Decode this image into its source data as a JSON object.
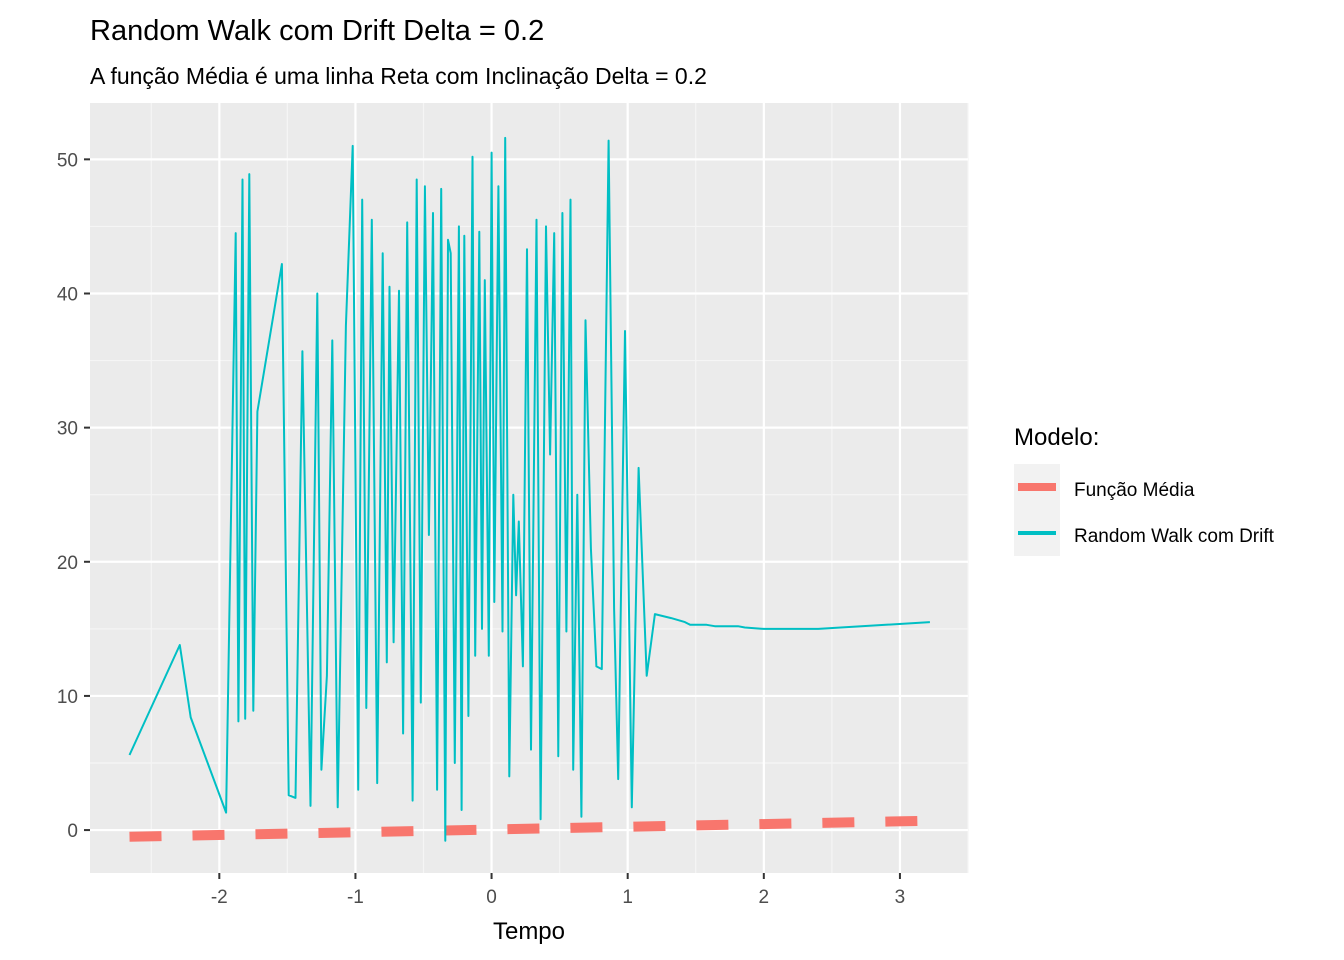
{
  "chart_data": {
    "type": "line",
    "title": "Random Walk com Drift Delta = 0.2",
    "subtitle": "A função Média é uma linha Reta com Inclinação Delta = 0.2",
    "xlabel": "Tempo",
    "ylabel": "",
    "xlim": [
      -2.95,
      3.5
    ],
    "ylim": [
      -3.2,
      54.2
    ],
    "x_ticks": [
      -2,
      -1,
      0,
      1,
      2,
      3
    ],
    "x_tick_labels": [
      "-2",
      "-1",
      "0",
      "1",
      "2",
      "3"
    ],
    "y_ticks": [
      0,
      10,
      20,
      30,
      40,
      50
    ],
    "y_tick_labels": [
      "0",
      "10",
      "20",
      "30",
      "40",
      "50"
    ],
    "grid": true,
    "legend": {
      "title": "Modelo:",
      "placement": "right",
      "entries": [
        "Função Média",
        "Random Walk com Drift"
      ]
    },
    "series": [
      {
        "name": "Função Média",
        "color": "#f8766d",
        "style": "dashed",
        "x": [
          -2.66,
          3.22
        ],
        "y": [
          -0.5,
          0.7
        ]
      },
      {
        "name": "Random Walk com Drift",
        "color": "#00bfc4",
        "style": "solid",
        "x": [
          -2.66,
          -2.29,
          -2.21,
          -1.95,
          -1.88,
          -1.86,
          -1.83,
          -1.81,
          -1.78,
          -1.75,
          -1.72,
          -1.54,
          -1.49,
          -1.44,
          -1.39,
          -1.33,
          -1.28,
          -1.25,
          -1.21,
          -1.17,
          -1.13,
          -1.07,
          -1.02,
          -0.98,
          -0.95,
          -0.92,
          -0.88,
          -0.84,
          -0.8,
          -0.77,
          -0.75,
          -0.72,
          -0.68,
          -0.65,
          -0.62,
          -0.58,
          -0.55,
          -0.52,
          -0.49,
          -0.46,
          -0.43,
          -0.4,
          -0.37,
          -0.34,
          -0.32,
          -0.3,
          -0.27,
          -0.24,
          -0.22,
          -0.2,
          -0.17,
          -0.14,
          -0.12,
          -0.09,
          -0.07,
          -0.05,
          -0.02,
          0.0,
          0.02,
          0.05,
          0.08,
          0.1,
          0.13,
          0.16,
          0.18,
          0.2,
          0.23,
          0.26,
          0.29,
          0.33,
          0.36,
          0.4,
          0.43,
          0.46,
          0.49,
          0.52,
          0.55,
          0.58,
          0.6,
          0.63,
          0.66,
          0.69,
          0.73,
          0.77,
          0.81,
          0.86,
          0.9,
          0.93,
          0.98,
          1.03,
          1.08,
          1.14,
          1.2,
          1.32,
          1.42,
          1.44,
          1.46,
          1.52,
          1.58,
          1.64,
          1.7,
          1.76,
          1.81,
          1.86,
          2.0,
          2.4,
          3.22
        ],
        "y": [
          5.6,
          13.8,
          8.4,
          1.3,
          44.5,
          8.1,
          48.5,
          8.3,
          48.9,
          8.9,
          31.2,
          42.2,
          2.6,
          2.4,
          35.7,
          1.8,
          40.0,
          4.5,
          11.5,
          36.5,
          1.7,
          37.6,
          51.0,
          3.0,
          47.0,
          9.1,
          45.5,
          3.5,
          43.0,
          12.5,
          40.5,
          14.0,
          40.2,
          7.2,
          45.3,
          2.2,
          48.5,
          9.5,
          48.0,
          22.0,
          46.0,
          3.0,
          47.8,
          -0.8,
          44.0,
          43.0,
          5.0,
          45.0,
          1.5,
          44.3,
          8.5,
          50.2,
          13.0,
          44.6,
          15.0,
          41.0,
          13.0,
          50.5,
          17.0,
          48.0,
          14.8,
          51.6,
          4.0,
          25.0,
          17.5,
          23.0,
          12.2,
          43.3,
          6.0,
          45.5,
          0.8,
          45.0,
          28.0,
          44.5,
          5.5,
          46.0,
          14.8,
          47.0,
          4.5,
          25.0,
          1.0,
          38.0,
          21.0,
          12.2,
          12.0,
          51.4,
          16.5,
          3.8,
          37.2,
          1.7,
          27.0,
          11.5,
          16.1,
          15.8,
          15.5,
          15.4,
          15.3,
          15.3,
          15.3,
          15.2,
          15.2,
          15.2,
          15.2,
          15.1,
          15.0,
          15.0,
          15.5
        ]
      }
    ]
  }
}
